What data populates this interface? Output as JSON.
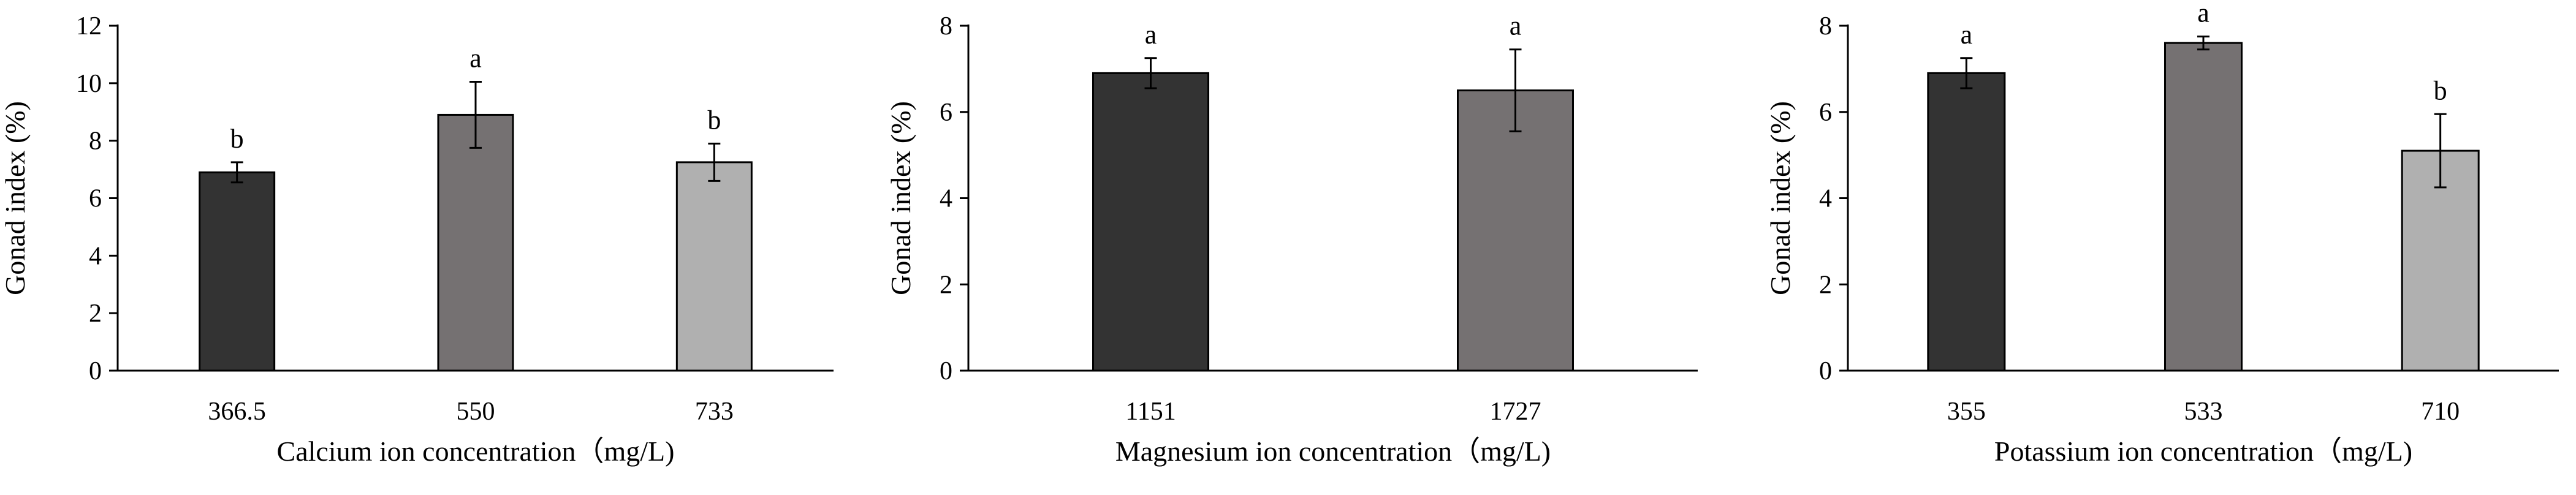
{
  "chart_data": [
    {
      "type": "bar",
      "xlabel": "Calcium ion concentration（mg/L)",
      "ylabel": "Gonad index (%)",
      "ylim": [
        0,
        12
      ],
      "yticks": [
        0,
        2,
        4,
        6,
        8,
        10,
        12
      ],
      "grid": false,
      "categories": [
        "366.5",
        "550",
        "733"
      ],
      "values": [
        6.9,
        8.9,
        7.25
      ],
      "errors": [
        0.35,
        1.15,
        0.65
      ],
      "letters": [
        "b",
        "a",
        "b"
      ],
      "colors": [
        "#333333",
        "#757172",
        "#b0b0b0"
      ]
    },
    {
      "type": "bar",
      "xlabel": "Magnesium ion concentration（mg/L)",
      "ylabel": "Gonad index (%)",
      "ylim": [
        0,
        8
      ],
      "yticks": [
        0,
        2,
        4,
        6,
        8
      ],
      "grid": false,
      "categories": [
        "1151",
        "1727"
      ],
      "values": [
        6.9,
        6.5
      ],
      "errors": [
        0.35,
        0.95
      ],
      "letters": [
        "a",
        "a"
      ],
      "colors": [
        "#333333",
        "#757172"
      ]
    },
    {
      "type": "bar",
      "xlabel": "Potassium ion concentration（mg/L)",
      "ylabel": "Gonad index (%)",
      "ylim": [
        0,
        8
      ],
      "yticks": [
        0,
        2,
        4,
        6,
        8
      ],
      "grid": false,
      "categories": [
        "355",
        "533",
        "710"
      ],
      "values": [
        6.9,
        7.6,
        5.1
      ],
      "errors": [
        0.35,
        0.15,
        0.85
      ],
      "letters": [
        "a",
        "a",
        "b"
      ],
      "colors": [
        "#333333",
        "#757172",
        "#b0b0b0"
      ]
    }
  ]
}
